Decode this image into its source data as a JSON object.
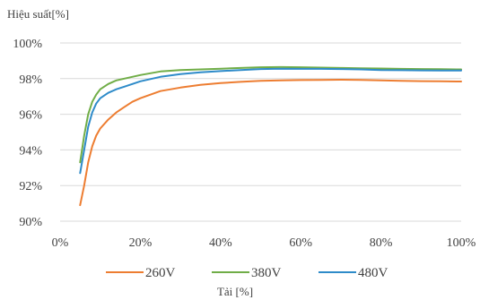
{
  "chart_data": {
    "type": "line",
    "title": "",
    "ylabel": "Hiệu suất[%]",
    "xlabel": "Tải [%]",
    "xlim": [
      0,
      100
    ],
    "ylim": [
      90,
      100
    ],
    "xticks": [
      0,
      20,
      40,
      60,
      80,
      100
    ],
    "yticks": [
      90,
      92,
      94,
      96,
      98,
      100
    ],
    "xtick_labels": [
      "0%",
      "20%",
      "40%",
      "60%",
      "80%",
      "100%"
    ],
    "ytick_labels": [
      "90%",
      "92%",
      "94%",
      "96%",
      "98%",
      "100%"
    ],
    "grid": "horizontal",
    "legend_position": "bottom",
    "series": [
      {
        "name": "260V",
        "color": "#ed7d31",
        "x": [
          5,
          6,
          7,
          8,
          9,
          10,
          12,
          14,
          16,
          18,
          20,
          25,
          30,
          35,
          40,
          45,
          50,
          55,
          60,
          65,
          70,
          75,
          80,
          85,
          90,
          95,
          100
        ],
        "y": [
          90.9,
          92.0,
          93.3,
          94.2,
          94.8,
          95.2,
          95.7,
          96.1,
          96.4,
          96.7,
          96.9,
          97.3,
          97.5,
          97.65,
          97.75,
          97.82,
          97.88,
          97.9,
          97.92,
          97.93,
          97.94,
          97.93,
          97.9,
          97.88,
          97.86,
          97.85,
          97.84
        ]
      },
      {
        "name": "380V",
        "color": "#70ad47",
        "x": [
          5,
          6,
          7,
          8,
          9,
          10,
          12,
          14,
          16,
          18,
          20,
          25,
          30,
          35,
          40,
          45,
          50,
          55,
          60,
          65,
          70,
          75,
          80,
          85,
          90,
          95,
          100
        ],
        "y": [
          93.3,
          94.8,
          96.0,
          96.7,
          97.1,
          97.4,
          97.7,
          97.9,
          98.0,
          98.1,
          98.2,
          98.4,
          98.48,
          98.52,
          98.56,
          98.6,
          98.64,
          98.65,
          98.64,
          98.62,
          98.6,
          98.58,
          98.57,
          98.55,
          98.54,
          98.53,
          98.52
        ]
      },
      {
        "name": "480V",
        "color": "#2e8bc9",
        "x": [
          5,
          6,
          7,
          8,
          9,
          10,
          12,
          14,
          16,
          18,
          20,
          25,
          30,
          35,
          40,
          45,
          50,
          55,
          60,
          65,
          70,
          75,
          80,
          85,
          90,
          95,
          100
        ],
        "y": [
          92.7,
          94.0,
          95.3,
          96.1,
          96.6,
          96.9,
          97.2,
          97.4,
          97.55,
          97.7,
          97.85,
          98.1,
          98.25,
          98.35,
          98.42,
          98.48,
          98.54,
          98.56,
          98.55,
          98.55,
          98.54,
          98.52,
          98.48,
          98.47,
          98.46,
          98.45,
          98.45
        ]
      }
    ]
  }
}
